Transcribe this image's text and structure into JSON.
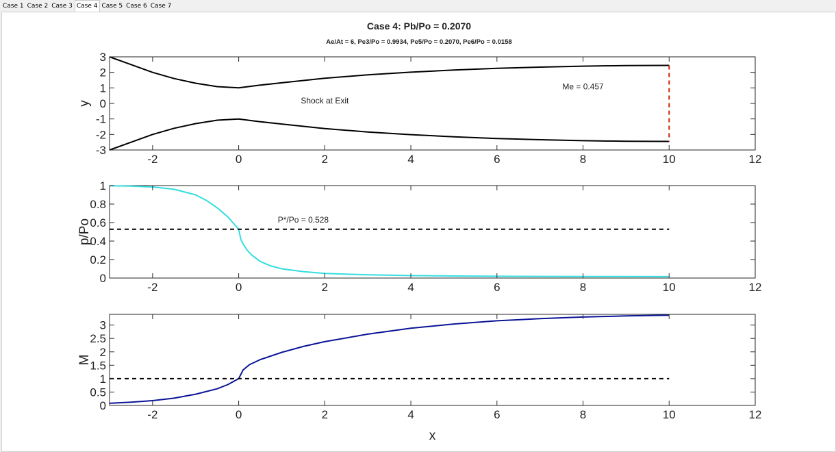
{
  "tabs": [
    {
      "label": "Case 1",
      "active": false
    },
    {
      "label": "Case 2",
      "active": false
    },
    {
      "label": "Case 3",
      "active": false
    },
    {
      "label": "Case 4",
      "active": true
    },
    {
      "label": "Case 5",
      "active": false
    },
    {
      "label": "Case 6",
      "active": false
    },
    {
      "label": "Case 7",
      "active": false
    }
  ],
  "figure": {
    "title": "Case 4: Pb/Po = 0.2070",
    "subtitle": "Ae/At = 6, Pe3/Po = 0.9934, Pe5/Po = 0.2070, Pe6/Po = 0.0158"
  },
  "colors": {
    "nozzle": "#000000",
    "shock": "#cc2200",
    "pressure": "#33dde0",
    "mach": "#0a1496",
    "reference": "#000000"
  },
  "chart_data": [
    {
      "type": "line",
      "title": "",
      "xlabel": "",
      "ylabel": "y",
      "xlim": [
        -3,
        12
      ],
      "ylim": [
        -3,
        3
      ],
      "xticks": [
        -2,
        0,
        2,
        4,
        6,
        8,
        10,
        12
      ],
      "yticks": [
        -3,
        -2,
        -1,
        0,
        1,
        2,
        3
      ],
      "series": [
        {
          "role": "upper-wall",
          "x": [
            -3,
            -2.5,
            -2,
            -1.5,
            -1,
            -0.5,
            0,
            0.5,
            1,
            2,
            3,
            4,
            5,
            6,
            7,
            8,
            9,
            10
          ],
          "y": [
            3.0,
            2.5,
            2.0,
            1.6,
            1.3,
            1.08,
            1.0,
            1.18,
            1.33,
            1.62,
            1.84,
            2.01,
            2.15,
            2.26,
            2.34,
            2.4,
            2.44,
            2.45
          ]
        },
        {
          "role": "lower-wall",
          "x": [
            -3,
            -2.5,
            -2,
            -1.5,
            -1,
            -0.5,
            0,
            0.5,
            1,
            2,
            3,
            4,
            5,
            6,
            7,
            8,
            9,
            10
          ],
          "y": [
            -3.0,
            -2.5,
            -2.0,
            -1.6,
            -1.3,
            -1.08,
            -1.0,
            -1.18,
            -1.33,
            -1.62,
            -1.84,
            -2.01,
            -2.15,
            -2.26,
            -2.34,
            -2.4,
            -2.44,
            -2.45
          ]
        },
        {
          "role": "shock",
          "x": [
            10,
            10
          ],
          "y": [
            2.45,
            -2.45
          ],
          "dashed": true
        }
      ],
      "annotations": [
        {
          "text": "Me = 0.457",
          "x": 8.0,
          "y": 0.9
        },
        {
          "text": "Shock at Exit",
          "x": 2.0,
          "y": 0.0
        }
      ]
    },
    {
      "type": "line",
      "title": "",
      "xlabel": "",
      "ylabel": "p/Po",
      "xlim": [
        -3,
        12
      ],
      "ylim": [
        0,
        1
      ],
      "xticks": [
        -2,
        0,
        2,
        4,
        6,
        8,
        10,
        12
      ],
      "yticks": [
        0,
        0.2,
        0.4,
        0.6,
        0.8,
        1
      ],
      "series": [
        {
          "role": "pressure",
          "x": [
            -3,
            -2.5,
            -2,
            -1.5,
            -1,
            -0.75,
            -0.5,
            -0.25,
            0,
            0.05,
            0.1,
            0.2,
            0.3,
            0.5,
            0.75,
            1,
            1.5,
            2,
            3,
            4,
            5,
            6,
            7,
            8,
            9,
            10
          ],
          "y": [
            0.998,
            0.995,
            0.985,
            0.96,
            0.9,
            0.84,
            0.76,
            0.66,
            0.528,
            0.42,
            0.37,
            0.3,
            0.25,
            0.18,
            0.13,
            0.1,
            0.07,
            0.05,
            0.035,
            0.027,
            0.022,
            0.019,
            0.018,
            0.017,
            0.016,
            0.0158
          ]
        },
        {
          "role": "critical-ratio",
          "x": [
            -3,
            10
          ],
          "y": [
            0.528,
            0.528
          ],
          "dashed": true
        }
      ],
      "annotations": [
        {
          "text": "P*/Po = 0.528",
          "x": 1.5,
          "y": 0.6
        }
      ]
    },
    {
      "type": "line",
      "title": "",
      "xlabel": "x",
      "ylabel": "M",
      "xlim": [
        -3,
        12
      ],
      "ylim": [
        0,
        3.4
      ],
      "xticks": [
        -2,
        0,
        2,
        4,
        6,
        8,
        10,
        12
      ],
      "yticks": [
        0,
        0.5,
        1,
        1.5,
        2,
        2.5,
        3
      ],
      "series": [
        {
          "role": "mach",
          "x": [
            -3,
            -2.5,
            -2,
            -1.5,
            -1,
            -0.5,
            -0.25,
            0,
            0.1,
            0.25,
            0.5,
            1,
            1.5,
            2,
            3,
            4,
            5,
            6,
            7,
            8,
            9,
            10
          ],
          "y": [
            0.08,
            0.12,
            0.18,
            0.27,
            0.42,
            0.62,
            0.78,
            1.0,
            1.32,
            1.52,
            1.71,
            1.98,
            2.2,
            2.38,
            2.66,
            2.88,
            3.04,
            3.16,
            3.24,
            3.3,
            3.34,
            3.37
          ]
        },
        {
          "role": "sonic-line",
          "x": [
            -3,
            10
          ],
          "y": [
            1,
            1
          ],
          "dashed": true
        }
      ]
    }
  ]
}
